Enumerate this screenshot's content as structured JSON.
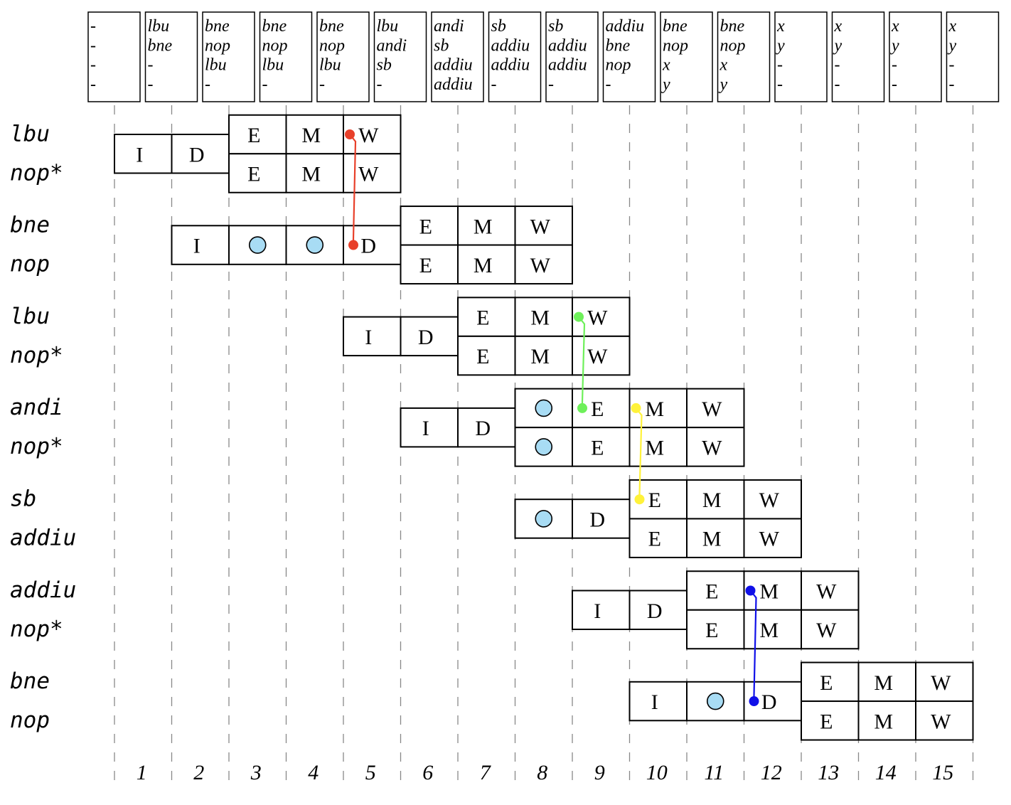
{
  "queue": [
    {
      "col": 1,
      "lines": [
        "-",
        "-",
        "-",
        "-"
      ]
    },
    {
      "col": 2,
      "lines": [
        "lbu",
        "bne",
        "-",
        "-"
      ]
    },
    {
      "col": 3,
      "lines": [
        "bne",
        "nop",
        "lbu",
        "-"
      ]
    },
    {
      "col": 4,
      "lines": [
        "bne",
        "nop",
        "lbu",
        "-"
      ]
    },
    {
      "col": 5,
      "lines": [
        "bne",
        "nop",
        "lbu",
        "-"
      ]
    },
    {
      "col": 6,
      "lines": [
        "lbu",
        "andi",
        "sb",
        "-"
      ]
    },
    {
      "col": 7,
      "lines": [
        "andi",
        "sb",
        "addiu",
        "addiu"
      ]
    },
    {
      "col": 8,
      "lines": [
        "sb",
        "addiu",
        "addiu",
        "-"
      ]
    },
    {
      "col": 9,
      "lines": [
        "sb",
        "addiu",
        "addiu",
        "-"
      ]
    },
    {
      "col": 10,
      "lines": [
        "addiu",
        "bne",
        "nop",
        "-"
      ]
    },
    {
      "col": 11,
      "lines": [
        "bne",
        "nop",
        "x",
        "y"
      ]
    },
    {
      "col": 12,
      "lines": [
        "bne",
        "nop",
        "x",
        "y"
      ]
    },
    {
      "col": 13,
      "lines": [
        "x",
        "y",
        "-",
        "-"
      ]
    },
    {
      "col": 14,
      "lines": [
        "x",
        "y",
        "-",
        "-"
      ]
    },
    {
      "col": 15,
      "lines": [
        "x",
        "y",
        "-",
        "-"
      ]
    },
    {
      "col": 16,
      "lines": [
        "x",
        "y",
        "-",
        "-"
      ]
    }
  ],
  "cycle_labels": [
    "1",
    "2",
    "3",
    "4",
    "5",
    "6",
    "7",
    "8",
    "9",
    "10",
    "11",
    "12",
    "13",
    "14",
    "15"
  ],
  "groups": [
    {
      "top": "lbu",
      "bottom": "nop*",
      "pre": [
        {
          "col": 1,
          "label": "I"
        },
        {
          "col": 2,
          "label": "D"
        }
      ],
      "upper": [
        {
          "col": 3,
          "label": "E"
        },
        {
          "col": 4,
          "label": "M"
        },
        {
          "col": 5,
          "label": "W"
        }
      ],
      "lower": [
        {
          "col": 3,
          "label": "E"
        },
        {
          "col": 4,
          "label": "M"
        },
        {
          "col": 5,
          "label": "W"
        }
      ]
    },
    {
      "top": "bne",
      "bottom": "nop",
      "pre": [
        {
          "col": 2,
          "label": "I"
        },
        {
          "col": 3,
          "label": "stall"
        },
        {
          "col": 4,
          "label": "stall"
        },
        {
          "col": 5,
          "label": "D"
        }
      ],
      "upper": [
        {
          "col": 6,
          "label": "E"
        },
        {
          "col": 7,
          "label": "M"
        },
        {
          "col": 8,
          "label": "W"
        }
      ],
      "lower": [
        {
          "col": 6,
          "label": "E"
        },
        {
          "col": 7,
          "label": "M"
        },
        {
          "col": 8,
          "label": "W"
        }
      ]
    },
    {
      "top": "lbu",
      "bottom": "nop*",
      "pre": [
        {
          "col": 5,
          "label": "I"
        },
        {
          "col": 6,
          "label": "D"
        }
      ],
      "upper": [
        {
          "col": 7,
          "label": "E"
        },
        {
          "col": 8,
          "label": "M"
        },
        {
          "col": 9,
          "label": "W"
        }
      ],
      "lower": [
        {
          "col": 7,
          "label": "E"
        },
        {
          "col": 8,
          "label": "M"
        },
        {
          "col": 9,
          "label": "W"
        }
      ]
    },
    {
      "top": "andi",
      "bottom": "nop*",
      "pre": [
        {
          "col": 6,
          "label": "I"
        },
        {
          "col": 7,
          "label": "D"
        }
      ],
      "upper": [
        {
          "col": 8,
          "label": "stall"
        },
        {
          "col": 9,
          "label": "E"
        },
        {
          "col": 10,
          "label": "M"
        },
        {
          "col": 11,
          "label": "W"
        }
      ],
      "lower": [
        {
          "col": 8,
          "label": "stall"
        },
        {
          "col": 9,
          "label": "E"
        },
        {
          "col": 10,
          "label": "M"
        },
        {
          "col": 11,
          "label": "W"
        }
      ]
    },
    {
      "top": "sb",
      "bottom": "addiu",
      "pre": [
        {
          "col": 8,
          "label": "stall"
        },
        {
          "col": 9,
          "label": "D"
        }
      ],
      "upper": [
        {
          "col": 10,
          "label": "E"
        },
        {
          "col": 11,
          "label": "M"
        },
        {
          "col": 12,
          "label": "W"
        }
      ],
      "lower": [
        {
          "col": 10,
          "label": "E"
        },
        {
          "col": 11,
          "label": "M"
        },
        {
          "col": 12,
          "label": "W"
        }
      ]
    },
    {
      "top": "addiu",
      "bottom": "nop*",
      "pre": [
        {
          "col": 9,
          "label": "I"
        },
        {
          "col": 10,
          "label": "D"
        }
      ],
      "upper": [
        {
          "col": 11,
          "label": "E"
        },
        {
          "col": 12,
          "label": "M"
        },
        {
          "col": 13,
          "label": "W"
        }
      ],
      "lower": [
        {
          "col": 11,
          "label": "E"
        },
        {
          "col": 12,
          "label": "M"
        },
        {
          "col": 13,
          "label": "W"
        }
      ]
    },
    {
      "top": "bne",
      "bottom": "nop",
      "pre": [
        {
          "col": 10,
          "label": "I"
        },
        {
          "col": 11,
          "label": "stall"
        },
        {
          "col": 12,
          "label": "D"
        }
      ],
      "upper": [
        {
          "col": 13,
          "label": "E"
        },
        {
          "col": 14,
          "label": "M"
        },
        {
          "col": 15,
          "label": "W"
        }
      ],
      "lower": [
        {
          "col": 13,
          "label": "E"
        },
        {
          "col": 14,
          "label": "M"
        },
        {
          "col": 15,
          "label": "W"
        }
      ]
    }
  ],
  "forwards": [
    {
      "color": "#e8402a",
      "from": {
        "group": 0,
        "col": 5,
        "row": "upper"
      },
      "to": {
        "group": 1,
        "col": 5,
        "row": "pre"
      }
    },
    {
      "color": "#6ef05a",
      "from": {
        "group": 2,
        "col": 9,
        "row": "upper"
      },
      "to": {
        "group": 3,
        "col": 9,
        "row": "upper"
      }
    },
    {
      "color": "#fff23a",
      "from": {
        "group": 3,
        "col": 10,
        "row": "upper"
      },
      "to": {
        "group": 4,
        "col": 10,
        "row": "upper"
      }
    },
    {
      "color": "#1010e8",
      "from": {
        "group": 5,
        "col": 12,
        "row": "upper"
      },
      "to": {
        "group": 6,
        "col": 12,
        "row": "pre"
      }
    }
  ],
  "colors": {
    "stall_fill": "#a8dcf4",
    "stroke": "#000000",
    "grid": "#888888"
  }
}
